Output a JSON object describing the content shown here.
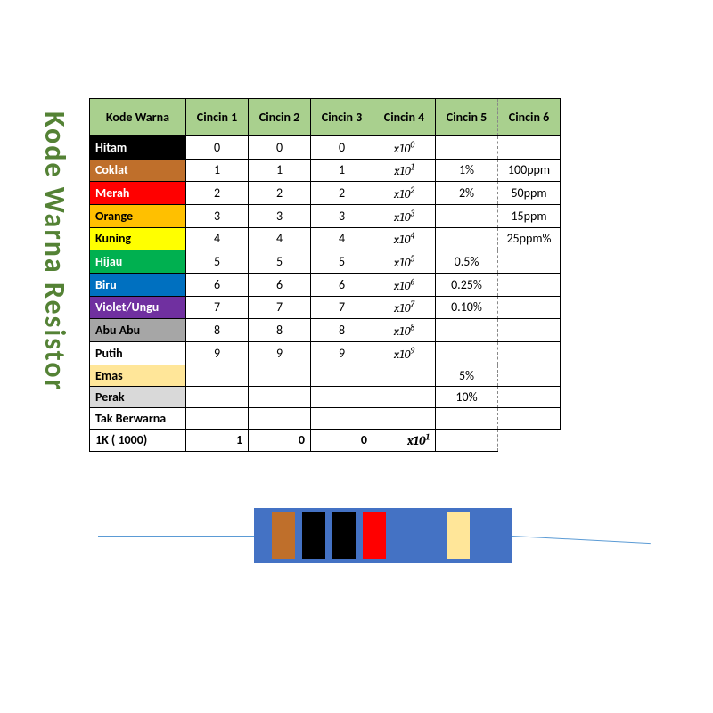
{
  "title": "Kode Warna Resistor",
  "headers": {
    "kode": "Kode Warna",
    "c1": "Cincin 1",
    "c2": "Cincin 2",
    "c3": "Cincin 3",
    "c4": "Cincin 4",
    "c5": "Cincin 5",
    "c6": "Cincin 6"
  },
  "header_bg": "#a9d08e",
  "title_color": "#548235",
  "rows": [
    {
      "name": "Hitam",
      "bg": "#000000",
      "fg": "#ffffff",
      "c1": "0",
      "c2": "0",
      "c3": "0",
      "exp": "0",
      "c5": "",
      "c6": ""
    },
    {
      "name": "Coklat",
      "bg": "#bf6f2b",
      "fg": "#ffffff",
      "c1": "1",
      "c2": "1",
      "c3": "1",
      "exp": "1",
      "c5": "1%",
      "c6": "100ppm"
    },
    {
      "name": "Merah",
      "bg": "#ff0000",
      "fg": "#ffffff",
      "c1": "2",
      "c2": "2",
      "c3": "2",
      "exp": "2",
      "c5": "2%",
      "c6": "50ppm"
    },
    {
      "name": "Orange",
      "bg": "#ffc000",
      "fg": "#000000",
      "c1": "3",
      "c2": "3",
      "c3": "3",
      "exp": "3",
      "c5": "",
      "c6": "15ppm"
    },
    {
      "name": "Kuning",
      "bg": "#ffff00",
      "fg": "#000000",
      "c1": "4",
      "c2": "4",
      "c3": "4",
      "exp": "4",
      "c5": "",
      "c6": "25ppm%"
    },
    {
      "name": "Hijau",
      "bg": "#00b050",
      "fg": "#ffffff",
      "c1": "5",
      "c2": "5",
      "c3": "5",
      "exp": "5",
      "c5": "0.5%",
      "c6": ""
    },
    {
      "name": "Biru",
      "bg": "#0070c0",
      "fg": "#ffffff",
      "c1": "6",
      "c2": "6",
      "c3": "6",
      "exp": "6",
      "c5": "0.25%",
      "c6": ""
    },
    {
      "name": "Violet/Ungu",
      "bg": "#7030a0",
      "fg": "#ffffff",
      "c1": "7",
      "c2": "7",
      "c3": "7",
      "exp": "7",
      "c5": "0.10%",
      "c6": ""
    },
    {
      "name": "Abu Abu",
      "bg": "#a6a6a6",
      "fg": "#000000",
      "c1": "8",
      "c2": "8",
      "c3": "8",
      "exp": "8",
      "c5": "",
      "c6": ""
    },
    {
      "name": "Putih",
      "bg": "#ffffff",
      "fg": "#000000",
      "c1": "9",
      "c2": "9",
      "c3": "9",
      "exp": "9",
      "c5": "",
      "c6": ""
    },
    {
      "name": "Emas",
      "bg": "#ffe699",
      "fg": "#000000",
      "c1": "",
      "c2": "",
      "c3": "",
      "exp": "",
      "c5": "5%",
      "c6": ""
    },
    {
      "name": "Perak",
      "bg": "#d9d9d9",
      "fg": "#000000",
      "c1": "",
      "c2": "",
      "c3": "",
      "exp": "",
      "c5": "10%",
      "c6": ""
    },
    {
      "name": "Tak Berwarna",
      "bg": "#ffffff",
      "fg": "#000000",
      "c1": "",
      "c2": "",
      "c3": "",
      "exp": "",
      "c5": "",
      "c6": ""
    }
  ],
  "footer": {
    "label": "1K ( 1000)",
    "c1": "1",
    "c2": "0",
    "c3": "0",
    "exp": "1"
  },
  "resistor": {
    "body_color": "#4472c4",
    "bands": [
      {
        "color": "#bf6f2b"
      },
      {
        "color": "#000000"
      },
      {
        "color": "#000000"
      },
      {
        "color": "#ff0000"
      },
      {
        "color": "#ffe699",
        "gap": true
      }
    ]
  }
}
